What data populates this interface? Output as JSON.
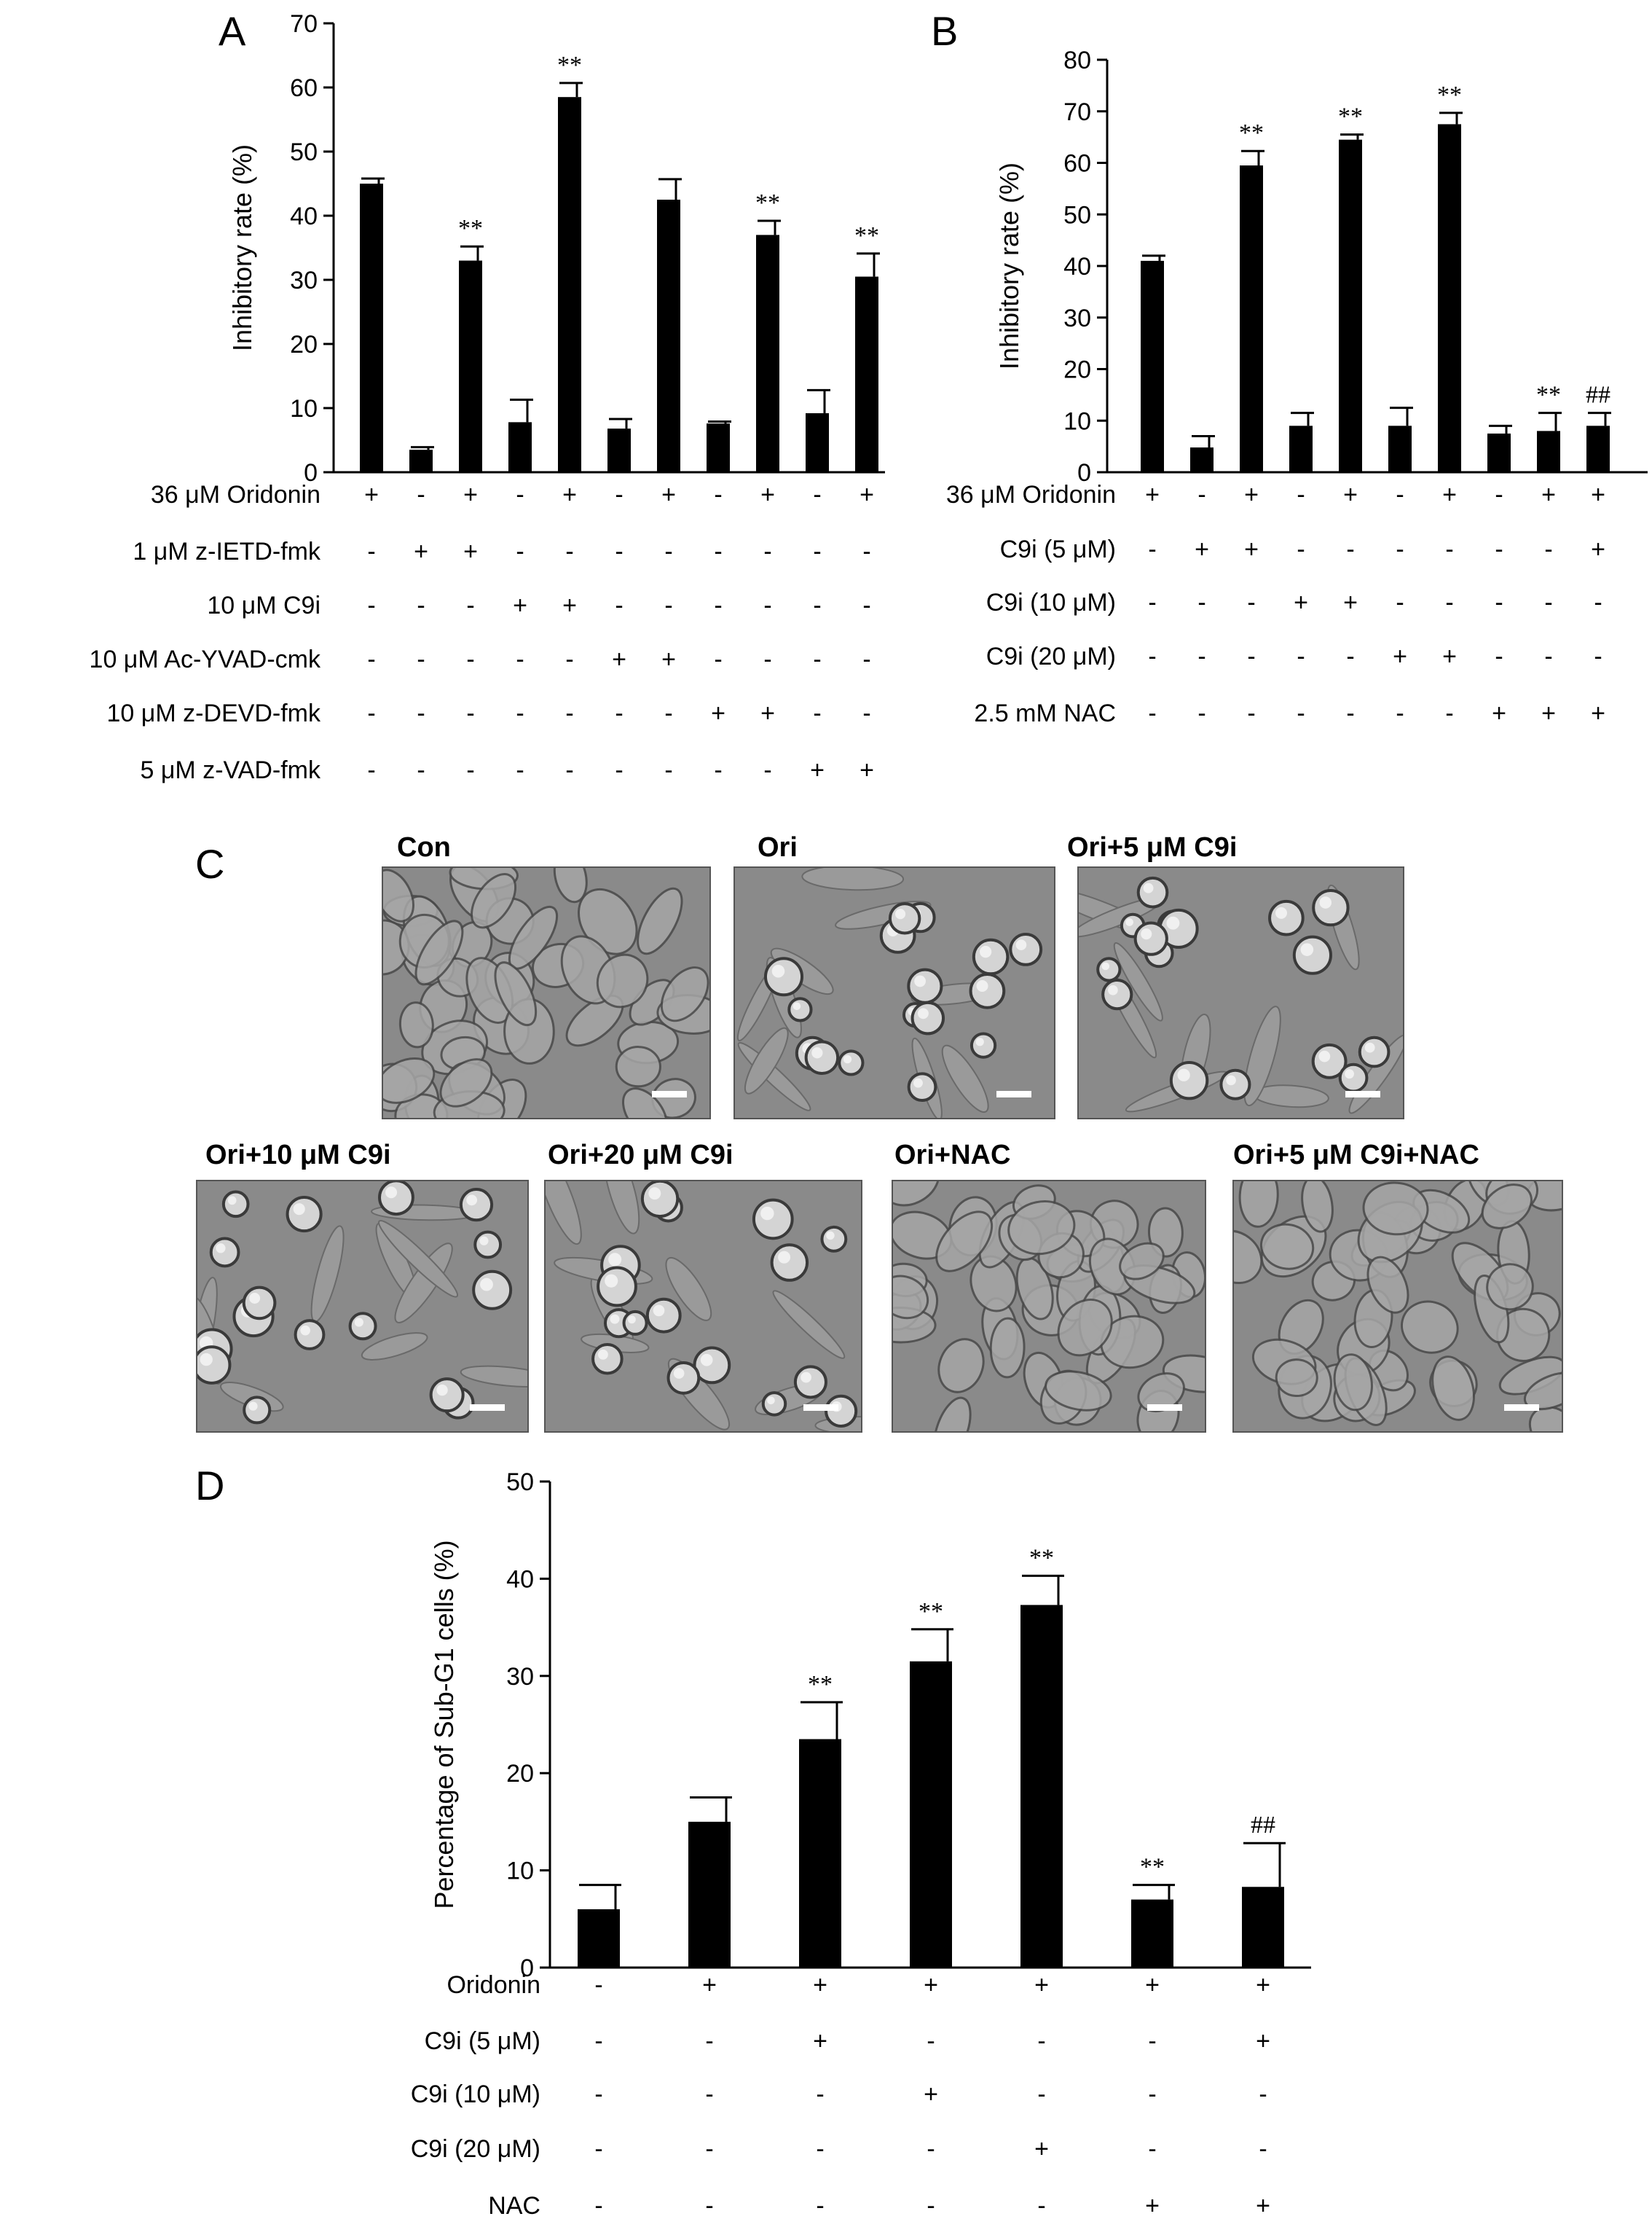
{
  "panels": {
    "A": "A",
    "B": "B",
    "C": "C",
    "D": "D"
  },
  "chart_data": [
    {
      "panel": "A",
      "type": "bar",
      "ylabel": "Inhibitory rate (%)",
      "ylim": [
        0,
        70
      ],
      "yticks": [
        0,
        10,
        20,
        30,
        40,
        50,
        60,
        70
      ],
      "values": [
        45,
        3.5,
        33,
        7.8,
        58.5,
        6.8,
        42.5,
        7.6,
        37,
        9.2,
        30.5
      ],
      "errors": [
        0.8,
        0.4,
        2.2,
        3.5,
        2.2,
        1.5,
        3.2,
        0.3,
        2.2,
        3.6,
        3.6
      ],
      "annotations": [
        "",
        "",
        "**",
        "",
        "**",
        "",
        "",
        "",
        "**",
        "",
        "**"
      ],
      "conditions": [
        {
          "label": "36 μM Oridonin",
          "signs": [
            "+",
            "-",
            "+",
            "-",
            "+",
            "-",
            "+",
            "-",
            "+",
            "-",
            "+"
          ]
        },
        {
          "label": "1 μM z-IETD-fmk",
          "signs": [
            "-",
            "+",
            "+",
            "-",
            "-",
            "-",
            "-",
            "-",
            "-",
            "-",
            "-"
          ]
        },
        {
          "label": "10 μM C9i",
          "signs": [
            "-",
            "-",
            "-",
            "+",
            "+",
            "-",
            "-",
            "-",
            "-",
            "-",
            "-"
          ]
        },
        {
          "label": "10 μM Ac-YVAD-cmk",
          "signs": [
            "-",
            "-",
            "-",
            "-",
            "-",
            "+",
            "+",
            "-",
            "-",
            "-",
            "-"
          ]
        },
        {
          "label": "10 μM z-DEVD-fmk",
          "signs": [
            "-",
            "-",
            "-",
            "-",
            "-",
            "-",
            "-",
            "+",
            "+",
            "-",
            "-"
          ]
        },
        {
          "label": "5 μM z-VAD-fmk",
          "signs": [
            "-",
            "-",
            "-",
            "-",
            "-",
            "-",
            "-",
            "-",
            "-",
            "+",
            "+"
          ]
        }
      ]
    },
    {
      "panel": "B",
      "type": "bar",
      "ylabel": "Inhibitory rate (%)",
      "ylim": [
        0,
        80
      ],
      "yticks": [
        0,
        10,
        20,
        30,
        40,
        50,
        60,
        70,
        80
      ],
      "values": [
        41,
        4.8,
        59.5,
        9,
        64.5,
        9,
        67.5,
        7.5,
        8,
        9
      ],
      "errors": [
        1.0,
        2.2,
        2.8,
        2.5,
        1.0,
        3.5,
        2.2,
        1.5,
        3.5,
        2.5
      ],
      "annotations": [
        "",
        "",
        "**",
        "",
        "**",
        "",
        "**",
        "",
        "**",
        "##"
      ],
      "conditions": [
        {
          "label": "36 μM Oridonin",
          "signs": [
            "+",
            "-",
            "+",
            "-",
            "+",
            "-",
            "+",
            "-",
            "+",
            "+"
          ]
        },
        {
          "label": "C9i (5 μM)",
          "signs": [
            "-",
            "+",
            "+",
            "-",
            "-",
            "-",
            "-",
            "-",
            "-",
            "+"
          ]
        },
        {
          "label": "C9i (10 μM)",
          "signs": [
            "-",
            "-",
            "-",
            "+",
            "+",
            "-",
            "-",
            "-",
            "-",
            "-"
          ]
        },
        {
          "label": "C9i (20 μM)",
          "signs": [
            "-",
            "-",
            "-",
            "-",
            "-",
            "+",
            "+",
            "-",
            "-",
            "-"
          ]
        },
        {
          "label": "2.5 mM NAC",
          "signs": [
            "-",
            "-",
            "-",
            "-",
            "-",
            "-",
            "-",
            "+",
            "+",
            "+"
          ]
        }
      ]
    },
    {
      "panel": "D",
      "type": "bar",
      "ylabel": "Percentage of Sub-G1 cells (%)",
      "ylim": [
        0,
        50
      ],
      "yticks": [
        0,
        10,
        20,
        30,
        40,
        50
      ],
      "values": [
        6,
        15,
        23.5,
        31.5,
        37.3,
        7,
        8.3
      ],
      "errors": [
        2.5,
        2.5,
        3.8,
        3.3,
        3.0,
        1.5,
        4.5
      ],
      "annotations": [
        "",
        "",
        "**",
        "**",
        "**",
        "**",
        "##"
      ],
      "conditions": [
        {
          "label": "Oridonin",
          "signs": [
            "-",
            "+",
            "+",
            "+",
            "+",
            "+",
            "+"
          ]
        },
        {
          "label": "C9i (5 μM)",
          "signs": [
            "-",
            "-",
            "+",
            "-",
            "-",
            "-",
            "+"
          ]
        },
        {
          "label": "C9i (10 μM)",
          "signs": [
            "-",
            "-",
            "-",
            "+",
            "-",
            "-",
            "-"
          ]
        },
        {
          "label": "C9i (20 μM)",
          "signs": [
            "-",
            "-",
            "-",
            "-",
            "+",
            "-",
            "-"
          ]
        },
        {
          "label": "NAC",
          "signs": [
            "-",
            "-",
            "-",
            "-",
            "-",
            "+",
            "+"
          ]
        }
      ]
    }
  ],
  "micrographs": [
    {
      "label": "Con",
      "texture": "confluent"
    },
    {
      "label": "Ori",
      "texture": "rounded"
    },
    {
      "label": "Ori+5 μM C9i",
      "texture": "rounded"
    },
    {
      "label": "Ori+10 μM C9i",
      "texture": "rounded"
    },
    {
      "label": "Ori+20 μM C9i",
      "texture": "rounded"
    },
    {
      "label": "Ori+NAC",
      "texture": "confluent"
    },
    {
      "label": "Ori+5 μM C9i+NAC",
      "texture": "confluent"
    }
  ],
  "colors": {
    "bar": "#000000",
    "micro_bg": "#8a8a8a",
    "cell": "#a6a6a6",
    "cell_edge": "#4a4a4a"
  }
}
